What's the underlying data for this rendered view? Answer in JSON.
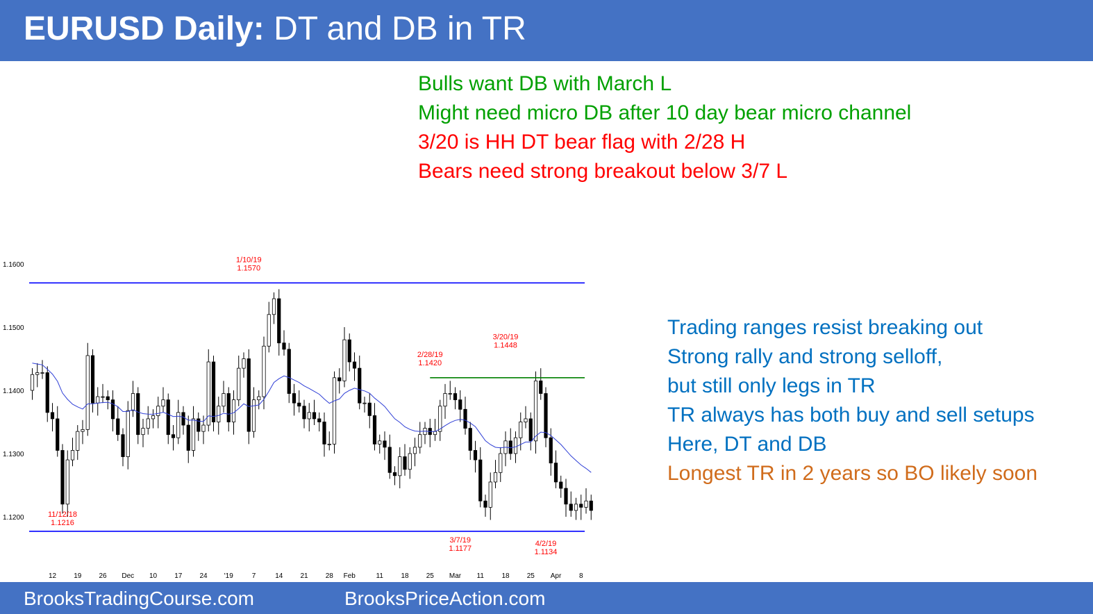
{
  "header": {
    "title_bold": "EURUSD Daily:",
    "title_rest": " DT and DB in TR"
  },
  "notes_top": [
    {
      "text": "Bulls want DB with March L",
      "color": "#00a000"
    },
    {
      "text": "Might need micro DB after 10 day bear micro channel",
      "color": "#00a000"
    },
    {
      "text": "3/20 is HH DT bear flag with 2/28 H",
      "color": "#ff0000"
    },
    {
      "text": "Bears need strong breakout below 3/7 L",
      "color": "#ff0000"
    }
  ],
  "notes_right": [
    {
      "text": "Trading ranges resist breaking out",
      "color": "#0070c0"
    },
    {
      "text": "Strong rally and strong selloff,",
      "color": "#0070c0"
    },
    {
      "text": "but still only legs in TR",
      "color": "#0070c0"
    },
    {
      "text": "TR always has both buy and sell setups",
      "color": "#0070c0"
    },
    {
      "text": "Here, DT and DB",
      "color": "#0070c0"
    },
    {
      "text": "Longest TR in 2 years so BO likely soon",
      "color": "#d06c1c"
    }
  ],
  "footer": {
    "left": "BrooksTradingCourse.com",
    "right": "BrooksPriceAction.com"
  },
  "chart_data": {
    "type": "candlestick",
    "ylim": [
      1.1145,
      1.1615
    ],
    "y_ticks": [
      {
        "value": 1.16,
        "label": "1.1600"
      },
      {
        "value": 1.15,
        "label": "1.1500"
      },
      {
        "value": 1.14,
        "label": "1.1400"
      },
      {
        "value": 1.13,
        "label": "1.1300"
      },
      {
        "value": 1.12,
        "label": "1.1200"
      }
    ],
    "x_ticks": [
      {
        "index": 4,
        "label": "12"
      },
      {
        "index": 9,
        "label": "19"
      },
      {
        "index": 14,
        "label": "26"
      },
      {
        "index": 19,
        "label": "Dec"
      },
      {
        "index": 24,
        "label": "10"
      },
      {
        "index": 29,
        "label": "17"
      },
      {
        "index": 34,
        "label": "24"
      },
      {
        "index": 39,
        "label": "'19"
      },
      {
        "index": 44,
        "label": "7"
      },
      {
        "index": 49,
        "label": "14"
      },
      {
        "index": 54,
        "label": "21"
      },
      {
        "index": 59,
        "label": "28"
      },
      {
        "index": 63,
        "label": "Feb"
      },
      {
        "index": 69,
        "label": "11"
      },
      {
        "index": 74,
        "label": "18"
      },
      {
        "index": 79,
        "label": "25"
      },
      {
        "index": 84,
        "label": "Mar"
      },
      {
        "index": 89,
        "label": "11"
      },
      {
        "index": 94,
        "label": "18"
      },
      {
        "index": 99,
        "label": "25"
      },
      {
        "index": 104,
        "label": "Apr"
      },
      {
        "index": 109,
        "label": "8"
      }
    ],
    "close": [
      1.1425,
      1.1428,
      1.1428,
      1.1365,
      1.1355,
      1.1305,
      1.122,
      1.129,
      1.1305,
      1.1335,
      1.1338,
      1.1455,
      1.138,
      1.139,
      1.139,
      1.1385,
      1.1355,
      1.133,
      1.1295,
      1.1368,
      1.1395,
      1.133,
      1.134,
      1.1355,
      1.136,
      1.1375,
      1.1385,
      1.133,
      1.1325,
      1.1365,
      1.1345,
      1.1305,
      1.1355,
      1.1335,
      1.1345,
      1.1445,
      1.135,
      1.1375,
      1.1395,
      1.135,
      1.1385,
      1.1435,
      1.145,
      1.1335,
      1.1385,
      1.139,
      1.147,
      1.152,
      1.1545,
      1.1475,
      1.1465,
      1.1395,
      1.138,
      1.1375,
      1.1355,
      1.1365,
      1.1355,
      1.135,
      1.1315,
      1.1315,
      1.142,
      1.1415,
      1.148,
      1.1445,
      1.1435,
      1.138,
      1.138,
      1.136,
      1.1315,
      1.132,
      1.131,
      1.127,
      1.1265,
      1.1295,
      1.1275,
      1.13,
      1.131,
      1.133,
      1.134,
      1.133,
      1.1335,
      1.1375,
      1.1395,
      1.1395,
      1.1385,
      1.137,
      1.134,
      1.1305,
      1.129,
      1.1225,
      1.1215,
      1.1255,
      1.127,
      1.13,
      1.132,
      1.13,
      1.1325,
      1.135,
      1.1355,
      1.132,
      1.1415,
      1.1395,
      1.1325,
      1.1285,
      1.1255,
      1.1245,
      1.122,
      1.121,
      1.122,
      1.1215,
      1.1225,
      1.121
    ],
    "ma_open": 1.1445,
    "annotations": [
      {
        "index": 43,
        "price": 1.157,
        "lines": [
          "1/10/19",
          "1.1570"
        ],
        "position": "above"
      },
      {
        "index": 6,
        "price": 1.1216,
        "lines": [
          "11/12/18",
          "1.1216"
        ],
        "position": "below"
      },
      {
        "index": 79,
        "price": 1.142,
        "lines": [
          "2/28/19",
          "1.1420"
        ],
        "position": "above"
      },
      {
        "index": 94,
        "price": 1.1448,
        "lines": [
          "3/20/19",
          "1.1448"
        ],
        "position": "above"
      },
      {
        "index": 85,
        "price": 1.1177,
        "lines": [
          "3/7/19",
          "1.1177"
        ],
        "position": "below"
      },
      {
        "index": 102,
        "price": 1.1134,
        "lines": [
          "4/2/19",
          "1.1134"
        ],
        "position": "below"
      }
    ],
    "hlines": [
      {
        "value": 1.157,
        "from": 0,
        "to": 108,
        "color": "#0000ff"
      },
      {
        "value": 1.1177,
        "from": 0,
        "to": 108,
        "color": "#0000ff"
      },
      {
        "value": 1.142,
        "from": 79,
        "to": 108,
        "color": "#008000"
      }
    ]
  }
}
